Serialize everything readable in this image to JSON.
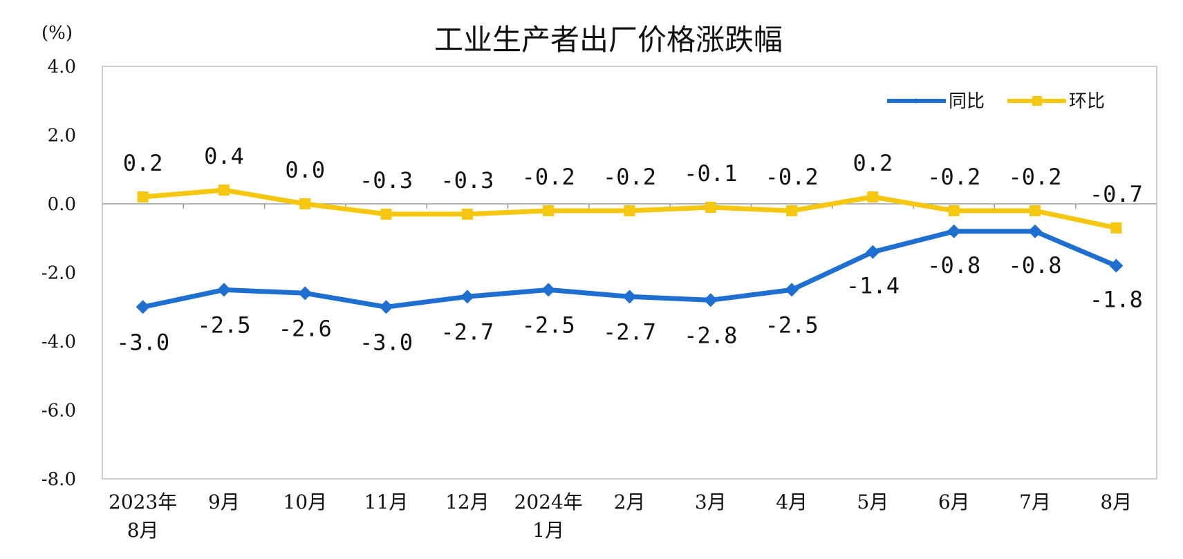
{
  "chart_data": {
    "type": "line",
    "title": "工业生产者出厂价格涨跌幅",
    "unit_label": "(%)",
    "ylim": [
      -8.0,
      4.0
    ],
    "yticks": [
      "4.0",
      "2.0",
      "0.0",
      "-2.0",
      "-4.0",
      "-6.0",
      "-8.0"
    ],
    "ytick_values": [
      4.0,
      2.0,
      0.0,
      -2.0,
      -4.0,
      -6.0,
      -8.0
    ],
    "categories": [
      [
        "2023年",
        "8月"
      ],
      [
        "9月"
      ],
      [
        "10月"
      ],
      [
        "11月"
      ],
      [
        "12月"
      ],
      [
        "2024年",
        "1月"
      ],
      [
        "2月"
      ],
      [
        "3月"
      ],
      [
        "4月"
      ],
      [
        "5月"
      ],
      [
        "6月"
      ],
      [
        "7月"
      ],
      [
        "8月"
      ]
    ],
    "legend_position": "top-right",
    "grid": false,
    "zero_line": true,
    "series": [
      {
        "name": "同比",
        "color": "#1f6fd1",
        "marker": "diamond",
        "values": [
          -3.0,
          -2.5,
          -2.6,
          -3.0,
          -2.7,
          -2.5,
          -2.7,
          -2.8,
          -2.5,
          -1.4,
          -0.8,
          -0.8,
          -1.8
        ],
        "labels": [
          "-3.0",
          "-2.5",
          "-2.6",
          "-3.0",
          "-2.7",
          "-2.5",
          "-2.7",
          "-2.8",
          "-2.5",
          "-1.4",
          "-0.8",
          "-0.8",
          "-1.8"
        ]
      },
      {
        "name": "环比",
        "color": "#f6c711",
        "marker": "square",
        "values": [
          0.2,
          0.4,
          0.0,
          -0.3,
          -0.3,
          -0.2,
          -0.2,
          -0.1,
          -0.2,
          0.2,
          -0.2,
          -0.2,
          -0.7
        ],
        "labels": [
          "0.2",
          "0.4",
          "0.0",
          "-0.3",
          "-0.3",
          "-0.2",
          "-0.2",
          "-0.1",
          "-0.2",
          "0.2",
          "-0.2",
          "-0.2",
          "-0.7"
        ]
      }
    ]
  }
}
